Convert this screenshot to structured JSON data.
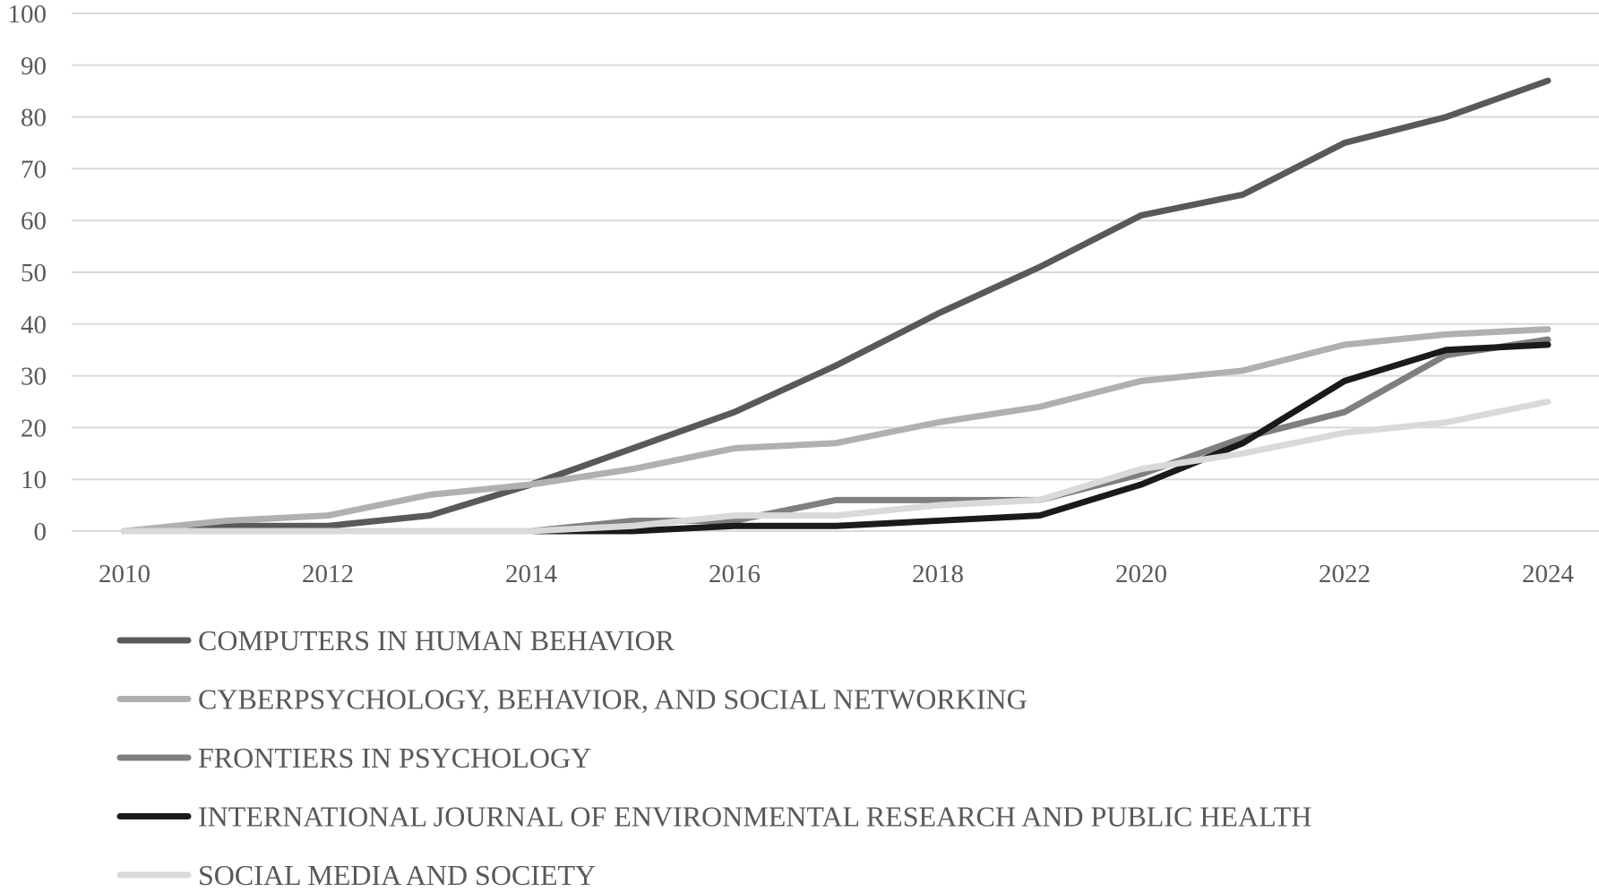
{
  "chart_data": {
    "type": "line",
    "title": "",
    "xlabel": "",
    "ylabel": "",
    "x": [
      2010,
      2011,
      2012,
      2013,
      2014,
      2015,
      2016,
      2017,
      2018,
      2019,
      2020,
      2021,
      2022,
      2023,
      2024
    ],
    "x_tick_labels": [
      "2010",
      "2012",
      "2014",
      "2016",
      "2018",
      "2020",
      "2022",
      "2024"
    ],
    "y_tick_labels": [
      "0",
      "10",
      "20",
      "30",
      "40",
      "50",
      "60",
      "70",
      "80",
      "90",
      "100"
    ],
    "ylim": [
      0,
      100
    ],
    "grid": true,
    "legend_placement": "bottom",
    "series": [
      {
        "name": "COMPUTERS IN HUMAN BEHAVIOR",
        "color": "#595959",
        "values": [
          0,
          1,
          1,
          3,
          9,
          16,
          23,
          32,
          42,
          51,
          61,
          65,
          75,
          80,
          87
        ]
      },
      {
        "name": "CYBERPSYCHOLOGY, BEHAVIOR, AND SOCIAL NETWORKING",
        "color": "#b0b0b0",
        "values": [
          0,
          2,
          3,
          7,
          9,
          12,
          16,
          17,
          21,
          24,
          29,
          31,
          36,
          38,
          39
        ]
      },
      {
        "name": "FRONTIERS IN PSYCHOLOGY",
        "color": "#7f7f7f",
        "values": [
          0,
          0,
          0,
          0,
          0,
          2,
          2,
          6,
          6,
          6,
          11,
          18,
          23,
          34,
          37
        ]
      },
      {
        "name": "INTERNATIONAL JOURNAL OF ENVIRONMENTAL RESEARCH AND PUBLIC HEALTH",
        "color": "#1a1a1a",
        "values": [
          0,
          0,
          0,
          0,
          0,
          0,
          1,
          1,
          2,
          3,
          9,
          17,
          29,
          35,
          36
        ]
      },
      {
        "name": "SOCIAL MEDIA AND SOCIETY",
        "color": "#d9d9d9",
        "values": [
          0,
          0,
          0,
          0,
          0,
          1,
          3,
          3,
          5,
          6,
          12,
          15,
          19,
          21,
          25
        ]
      }
    ]
  }
}
